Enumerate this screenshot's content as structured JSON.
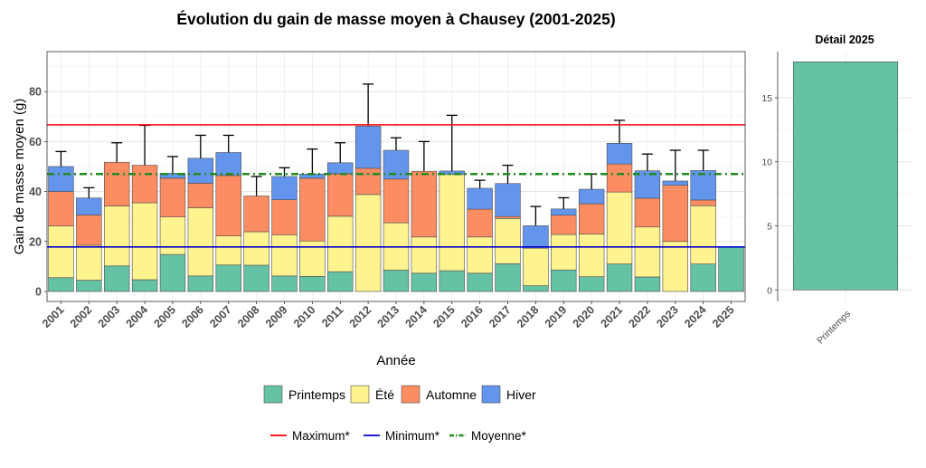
{
  "chart_data": [
    {
      "type": "bar",
      "stacked": true,
      "title": "Évolution du gain de masse moyen à Chausey (2001-2025)",
      "xlabel": "Année",
      "ylabel": "Gain de masse moyen (g)",
      "ylim": [
        -4,
        96
      ],
      "yticks": [
        0,
        20,
        40,
        60,
        80
      ],
      "grid": true,
      "categories": [
        "2001",
        "2002",
        "2003",
        "2004",
        "2005",
        "2006",
        "2007",
        "2008",
        "2009",
        "2010",
        "2011",
        "2012",
        "2013",
        "2014",
        "2015",
        "2016",
        "2017",
        "2018",
        "2019",
        "2020",
        "2021",
        "2022",
        "2023",
        "2024",
        "2025"
      ],
      "series": [
        {
          "name": "Printemps",
          "color": "#66c2a5",
          "values": [
            5.5,
            4.5,
            10.2,
            4.7,
            14.8,
            6.2,
            10.6,
            10.5,
            6.2,
            6,
            7.9,
            0,
            8.5,
            7.3,
            8.3,
            7.3,
            11.1,
            2.3,
            8.6,
            5.9,
            11,
            5.8,
            0,
            11,
            17.8
          ]
        },
        {
          "name": "Été",
          "color": "#fff38f",
          "values": [
            20.7,
            14,
            24,
            30.8,
            15,
            27.3,
            11.6,
            13.4,
            16.5,
            14.2,
            22.2,
            38.8,
            19,
            14.5,
            38.5,
            14.5,
            18.1,
            15,
            14.2,
            17.1,
            28.8,
            20,
            20,
            23.3,
            0
          ]
        },
        {
          "name": "Automne",
          "color": "#fc8d62",
          "values": [
            13.8,
            12.1,
            17.5,
            15,
            15.5,
            9.8,
            24.2,
            14.3,
            14,
            25.1,
            17,
            10.5,
            17.5,
            26.3,
            0,
            11.1,
            0.8,
            0,
            7.7,
            12.1,
            11.2,
            11.5,
            22.5,
            2.3,
            0
          ]
        },
        {
          "name": "Hiver",
          "color": "#6495ed",
          "values": [
            10,
            6.8,
            0,
            0,
            2,
            10,
            9.2,
            0,
            9.3,
            1.7,
            4.4,
            16.9,
            11.5,
            0,
            1.4,
            8.4,
            13.2,
            9,
            2.5,
            5.8,
            8.3,
            11,
            1.7,
            11.8,
            0
          ]
        }
      ],
      "error_bar_tops": [
        56,
        41.5,
        59.5,
        66.5,
        54,
        62.5,
        62.5,
        46,
        49.5,
        57,
        59.5,
        83,
        61.5,
        60,
        70.5,
        44.5,
        50.5,
        34,
        37.5,
        47,
        68.5,
        55,
        56.5,
        56.5,
        null
      ],
      "reference_lines": [
        {
          "name": "Maximum*",
          "value": 66.7,
          "color": "#ff0000",
          "style": "solid"
        },
        {
          "name": "Minimum*",
          "value": 17.8,
          "color": "#0000cd",
          "style": "solid"
        },
        {
          "name": "Moyenne*",
          "value": 47,
          "color": "#228b22",
          "style": "dot-dash"
        }
      ]
    },
    {
      "type": "bar",
      "title": "Détail 2025",
      "categories": [
        "Printemps"
      ],
      "values": [
        17.8
      ],
      "color": "#66c2a5",
      "ylim": [
        -0.9,
        18.6
      ],
      "yticks": [
        0,
        5,
        10,
        15
      ],
      "grid": true
    }
  ],
  "legend": {
    "seasons": [
      {
        "label": "Printemps",
        "color": "#66c2a5"
      },
      {
        "label": "Été",
        "color": "#fff38f"
      },
      {
        "label": "Automne",
        "color": "#fc8d62"
      },
      {
        "label": "Hiver",
        "color": "#6495ed"
      }
    ],
    "lines": [
      {
        "label": "Maximum*",
        "color": "#ff0000",
        "style": "solid"
      },
      {
        "label": "Minimum*",
        "color": "#0000cd",
        "style": "solid"
      },
      {
        "label": "Moyenne*",
        "color": "#228b22",
        "style": "dot-dash"
      }
    ]
  }
}
